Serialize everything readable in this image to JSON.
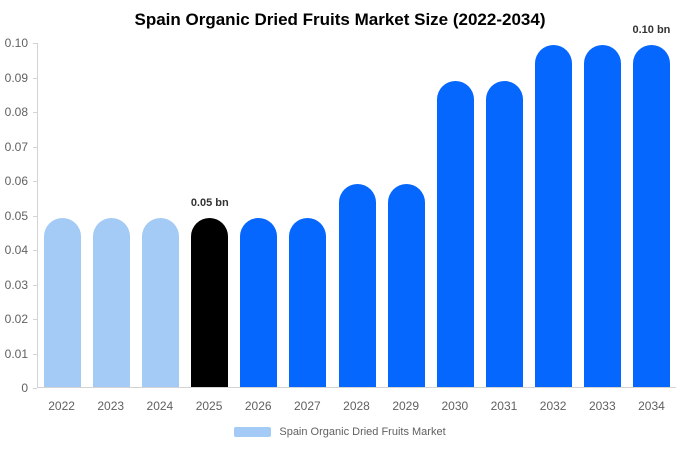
{
  "chart_data": {
    "type": "bar",
    "title": "Spain Organic Dried Fruits Market Size (2022-2034)",
    "categories": [
      "2022",
      "2023",
      "2024",
      "2025",
      "2026",
      "2027",
      "2028",
      "2029",
      "2030",
      "2031",
      "2032",
      "2033",
      "2034"
    ],
    "values": [
      0.049,
      0.049,
      0.049,
      0.049,
      0.049,
      0.049,
      0.059,
      0.059,
      0.089,
      0.089,
      0.0995,
      0.0995,
      0.0995
    ],
    "unit": "bn",
    "xlabel": "",
    "ylabel": "",
    "ylim": [
      0,
      0.1
    ],
    "grid": false,
    "legend_position": "bottom",
    "y_ticks": [
      {
        "label": "0",
        "value": 0
      },
      {
        "label": "0.01",
        "value": 0.01
      },
      {
        "label": "0.02",
        "value": 0.02
      },
      {
        "label": "0.03",
        "value": 0.03
      },
      {
        "label": "0.04",
        "value": 0.04
      },
      {
        "label": "0.05",
        "value": 0.05
      },
      {
        "label": "0.06",
        "value": 0.06
      },
      {
        "label": "0.07",
        "value": 0.07
      },
      {
        "label": "0.08",
        "value": 0.08
      },
      {
        "label": "0.09",
        "value": 0.09
      },
      {
        "label": "0.10",
        "value": 0.1
      }
    ],
    "bar_colors": [
      "#a3cbf5",
      "#a3cbf5",
      "#a3cbf5",
      "#000000",
      "#0567fd",
      "#0567fd",
      "#0567fd",
      "#0567fd",
      "#0567fd",
      "#0567fd",
      "#0567fd",
      "#0567fd",
      "#0567fd"
    ],
    "annotations": [
      {
        "text": "0.05 bn",
        "bar_index": 3
      },
      {
        "text": "0.10 bn",
        "bar_index": 12
      }
    ],
    "legend": {
      "label": "Spain Organic Dried Fruits Market",
      "swatch_color": "#a3cbf5"
    }
  },
  "colors": {
    "past_bar": "#a3cbf5",
    "highlight_bar": "#000000",
    "forecast_bar": "#0567fd",
    "axis_line": "#d3d3d3",
    "axis_text": "#616161",
    "annotation_text": "#333333",
    "title_text": "#000000",
    "background": "#ffffff"
  }
}
